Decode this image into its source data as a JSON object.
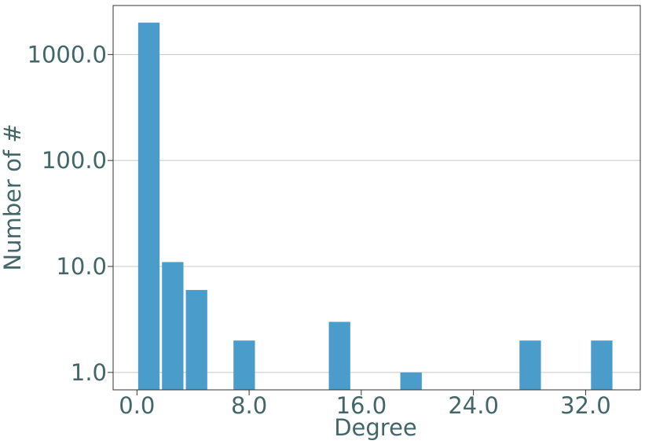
{
  "chart_data": {
    "type": "histogram",
    "xlabel": "Degree",
    "ylabel": "Number of #",
    "bins": [
      0,
      1.7,
      3.4,
      5.1,
      6.8,
      8.5,
      10.2,
      11.9,
      13.6,
      15.3,
      17,
      18.7,
      20.4,
      22.1,
      23.8,
      25.5,
      27.2,
      28.9,
      30.6,
      32.3,
      34
    ],
    "values": [
      2000,
      11,
      6,
      0,
      2,
      0,
      0,
      0,
      3,
      0,
      0,
      1,
      0,
      0,
      0,
      0,
      2,
      0,
      0,
      2
    ],
    "color": "#4a9dcb",
    "xlim": [
      -1.7,
      35.9
    ],
    "xticks": [
      {
        "value": 0,
        "label": "0.0"
      },
      {
        "value": 8,
        "label": "8.0"
      },
      {
        "value": 16,
        "label": "16.0"
      },
      {
        "value": 24,
        "label": "24.0"
      },
      {
        "value": 32,
        "label": "32.0"
      }
    ],
    "ylim": [
      0.685,
      2900
    ],
    "yticks": [
      {
        "value": 1,
        "label": "1.0"
      },
      {
        "value": 10,
        "label": "10.0"
      },
      {
        "value": 100,
        "label": "100.0"
      },
      {
        "value": 1000,
        "label": "1000.0"
      }
    ],
    "log_y": true,
    "grid": true
  }
}
